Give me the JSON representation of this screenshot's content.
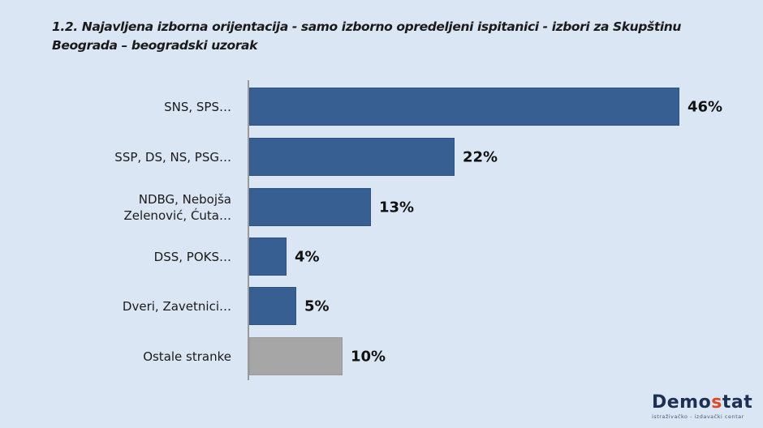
{
  "title": "1.2. Najavljena izborna orijentacija  - samo izborno opredeljeni ispitanici - izbori za Skupštinu Beograda – beogradski uzorak",
  "logo": {
    "part1": "Demo",
    "accent": "s",
    "part2": "tat",
    "subtitle": "istraživačko - izdavački centar"
  },
  "colors": {
    "background": "#dbe6f4",
    "bar_primary": "#375f91",
    "bar_other": "#a6a6a6",
    "logo_accent": "#d94b25"
  },
  "chart_data": {
    "type": "bar",
    "orientation": "horizontal",
    "title": "1.2. Najavljena izborna orijentacija - samo izborno opredeljeni ispitanici - izbori za Skupštinu Beograda – beogradski uzorak",
    "categories": [
      "SNS, SPS…",
      "SSP, DS, NS, PSG…",
      "NDBG, Nebojša Zelenović, Ćuta…",
      "DSS, POKS…",
      "Dveri, Zavetnici…",
      "Ostale stranke"
    ],
    "values": [
      46,
      22,
      13,
      4,
      5,
      10
    ],
    "value_labels": [
      "46%",
      "22%",
      "13%",
      "4%",
      "5%",
      "10%"
    ],
    "unit": "%",
    "xlabel": "",
    "ylabel": "",
    "grid": false,
    "legend": null
  },
  "bars": [
    {
      "label": "SNS, SPS…",
      "value": "46%",
      "pct": 46,
      "color": "#375f91"
    },
    {
      "label": "SSP, DS, NS, PSG…",
      "value": "22%",
      "pct": 22,
      "color": "#375f91"
    },
    {
      "label": "NDBG, Nebojša Zelenović, Ćuta…",
      "value": "13%",
      "pct": 13,
      "color": "#375f91"
    },
    {
      "label": "DSS, POKS…",
      "value": "4%",
      "pct": 4,
      "color": "#375f91"
    },
    {
      "label": "Dveri, Zavetnici…",
      "value": "5%",
      "pct": 5,
      "color": "#375f91"
    },
    {
      "label": "Ostale stranke",
      "value": "10%",
      "pct": 10,
      "color": "#a6a6a6"
    }
  ]
}
